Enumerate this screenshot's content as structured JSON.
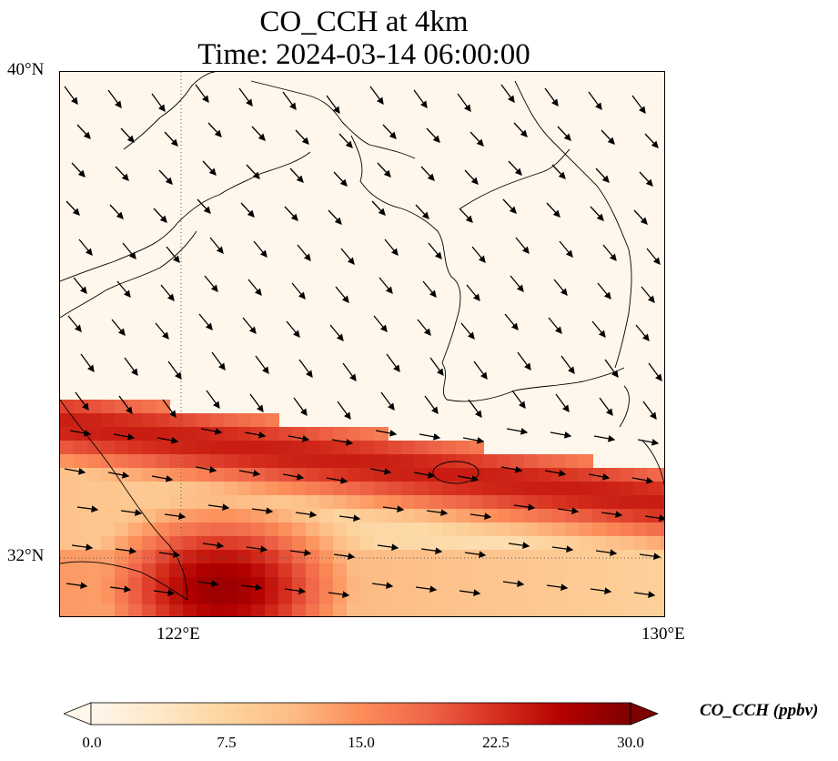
{
  "title": {
    "line1": "CO_CCH at 4km",
    "line2": "Time: 2024-03-14 06:00:00"
  },
  "axes": {
    "lat_labels": [
      "40°N",
      "32°N"
    ],
    "lon_labels": [
      "122°E",
      "130°E"
    ],
    "lon_range": [
      120,
      130
    ],
    "lat_range": [
      31,
      40
    ]
  },
  "colorbar": {
    "label": "CO_CCH (ppbv)",
    "ticks": [
      "0.0",
      "7.5",
      "15.0",
      "22.5",
      "30.0"
    ],
    "range": [
      0,
      30
    ],
    "colormap": "OrRd",
    "colors": [
      "#fff7ec",
      "#fee8c8",
      "#fdd49e",
      "#fdbb84",
      "#fc8d59",
      "#ef6548",
      "#d7301f",
      "#b30000",
      "#7f0000"
    ]
  },
  "map": {
    "variable": "CO_CCH",
    "level": "4km",
    "gridlines": "dotted at 122°E and 32°N",
    "wind_vectors": "shown as black arrows"
  }
}
